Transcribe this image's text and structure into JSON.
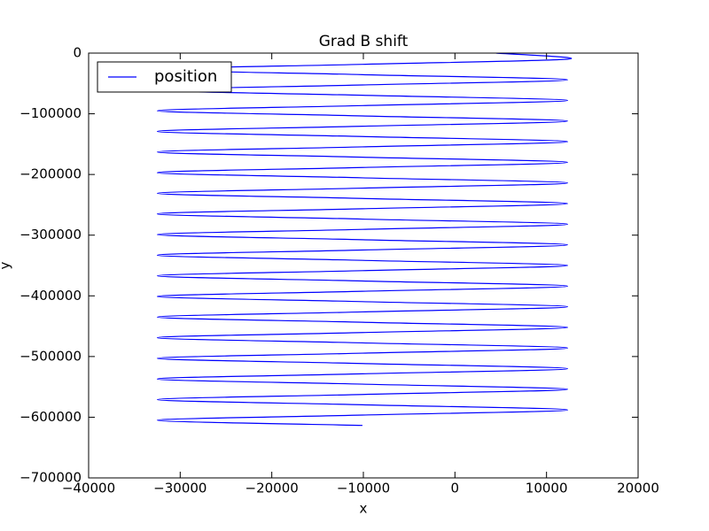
{
  "chart_data": {
    "type": "line",
    "title": "Grad B shift",
    "x_label": "x",
    "y_label": "y",
    "x": [
      4500,
      12300,
      -10100,
      -32500,
      -10100,
      12300,
      -10100,
      -32500,
      -10100,
      12300,
      -10100,
      -32500,
      -10100,
      12300,
      -10100,
      -32500,
      -10100,
      12300,
      -10100,
      -32500,
      -10100,
      12300,
      -10100,
      -32500,
      -10100,
      12300,
      -10100,
      -32500,
      -10100,
      12300,
      -10100,
      -32500,
      -10100,
      12300,
      -10100,
      -32500,
      -10100,
      12300,
      -10100,
      -32500,
      -10100,
      12300,
      -10100,
      -32500,
      -10100,
      12300,
      -10100,
      -32500,
      -10100,
      12300,
      -10100,
      -32500,
      -10100,
      12300,
      -10100,
      -32500,
      -10100,
      12300,
      -10100,
      -32500,
      -10100,
      12300,
      -10100,
      -32500,
      -10100,
      12300,
      -10100,
      -32500,
      -10100,
      12300,
      -10100,
      -32500,
      -10100
    ],
    "series": [
      {
        "name": "position",
        "color": "#0000ff",
        "values": [
          0,
          -10000,
          -18500,
          -27000,
          -35500,
          -44000,
          -52500,
          -61000,
          -69500,
          -78000,
          -86500,
          -95000,
          -103500,
          -112000,
          -120500,
          -129000,
          -137500,
          -146000,
          -154500,
          -163000,
          -171500,
          -180000,
          -188500,
          -197000,
          -205500,
          -214000,
          -222500,
          -231000,
          -239500,
          -248000,
          -256500,
          -265000,
          -273500,
          -282000,
          -290500,
          -299000,
          -307500,
          -316000,
          -324500,
          -333000,
          -341500,
          -350000,
          -358500,
          -367000,
          -375500,
          -384000,
          -392500,
          -401000,
          -409500,
          -418000,
          -426500,
          -435000,
          -443500,
          -452000,
          -460500,
          -469000,
          -477500,
          -486000,
          -494500,
          -503000,
          -511500,
          -520000,
          -528500,
          -537000,
          -545500,
          -554000,
          -562500,
          -571000,
          -579500,
          -588000,
          -596500,
          -605000,
          -613500
        ]
      }
    ],
    "xlim": [
      -40000,
      20000
    ],
    "xticks": [
      {
        "value": -40000,
        "label": "−40000"
      },
      {
        "value": -30000,
        "label": "−30000"
      },
      {
        "value": -20000,
        "label": "−20000"
      },
      {
        "value": -10000,
        "label": "−10000"
      },
      0,
      10000,
      20000
    ],
    "ylim": [
      -700000,
      0
    ],
    "yticks": [
      0,
      {
        "value": -100000,
        "label": "−100000"
      },
      {
        "value": -200000,
        "label": "−200000"
      },
      {
        "value": -300000,
        "label": "−300000"
      },
      {
        "value": -400000,
        "label": "−400000"
      },
      {
        "value": -500000,
        "label": "−500000"
      },
      {
        "value": -600000,
        "label": "−600000"
      },
      {
        "value": -700000,
        "label": "−700000"
      }
    ],
    "grid": false,
    "legend": "upper left"
  }
}
